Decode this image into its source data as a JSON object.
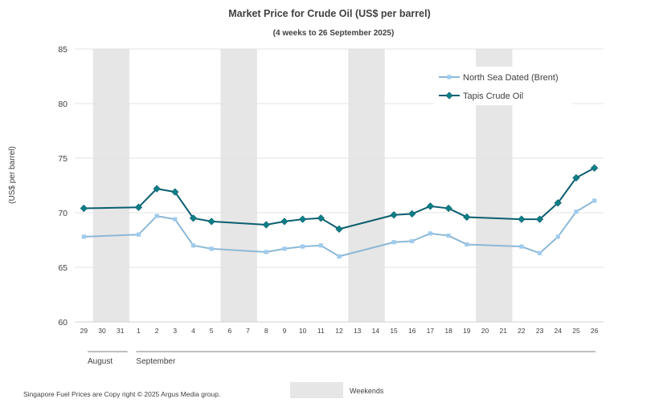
{
  "chart_data": {
    "type": "line",
    "title": "Market Price for Crude  Oil (US$ per barrel)",
    "subtitle": "(4 weeks to 26 September 2025)",
    "ylabel": "(US$ per barrel)",
    "xlabel": "",
    "ylim": [
      60,
      85
    ],
    "yticks": [
      60,
      65,
      70,
      75,
      80,
      85
    ],
    "x": [
      "29",
      "30",
      "31",
      "1",
      "2",
      "3",
      "4",
      "5",
      "6",
      "7",
      "8",
      "9",
      "10",
      "11",
      "12",
      "13",
      "14",
      "15",
      "16",
      "17",
      "18",
      "19",
      "20",
      "21",
      "22",
      "23",
      "24",
      "25",
      "26"
    ],
    "months": [
      {
        "name": "August",
        "start_index": 0,
        "end_index": 2
      },
      {
        "name": "September",
        "start_index": 3,
        "end_index": 28
      }
    ],
    "weekends": [
      [
        1,
        2
      ],
      [
        8,
        9
      ],
      [
        15,
        16
      ],
      [
        22,
        23
      ]
    ],
    "series": [
      {
        "name": "North Sea Dated (Brent)",
        "color": "#8cb8d6",
        "marker_color": "#9fcbed",
        "marker": "square",
        "values": [
          67.8,
          null,
          null,
          68.0,
          69.7,
          69.4,
          67.0,
          66.7,
          null,
          null,
          66.4,
          66.7,
          66.9,
          67.0,
          66.0,
          null,
          null,
          67.3,
          67.4,
          68.1,
          67.9,
          67.1,
          null,
          null,
          66.9,
          66.3,
          67.8,
          70.1,
          71.1
        ]
      },
      {
        "name": "Tapis Crude Oil",
        "color": "#0b5e70",
        "marker_color": "#0d7f86",
        "marker": "diamond",
        "values": [
          70.4,
          null,
          null,
          70.5,
          72.2,
          71.9,
          69.5,
          69.2,
          null,
          null,
          68.9,
          69.2,
          69.4,
          69.5,
          68.5,
          null,
          null,
          69.8,
          69.9,
          70.6,
          70.4,
          69.6,
          null,
          null,
          69.4,
          69.4,
          70.9,
          73.2,
          74.1
        ]
      }
    ],
    "legend_position": "top-right"
  },
  "weekend_legend_label": "Weekends",
  "footer": "Singapore  Fuel Prices are  Copy right © 2025 Argus Media  group."
}
